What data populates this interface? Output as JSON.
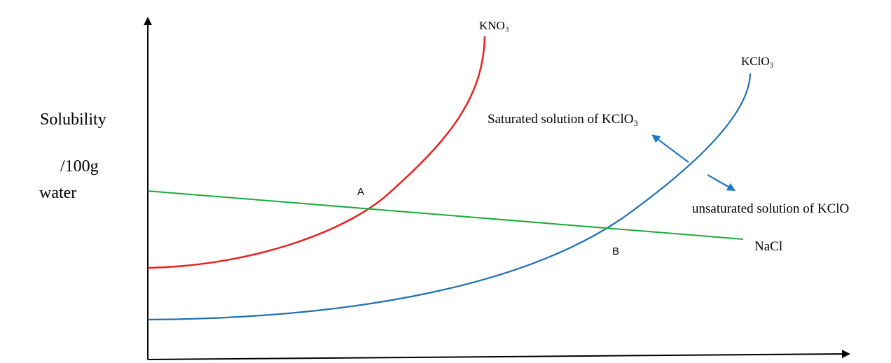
{
  "chart_data": {
    "type": "line",
    "title": "",
    "ylabel_lines": [
      "Solubility",
      "/100g",
      "water"
    ],
    "xlabel": "",
    "axes_ticks": false,
    "grid": false,
    "series": [
      {
        "name": "KNO₃",
        "color": "#e8201c"
      },
      {
        "name": "KClO₃",
        "color": "#1f6fb4"
      },
      {
        "name": "NaCl",
        "color": "#1aaa3a"
      }
    ],
    "points": [
      {
        "label": "A"
      },
      {
        "label": "B"
      }
    ],
    "annotations": {
      "saturated": "Saturated  solution of KClO₃",
      "unsaturated": "unsaturated  solution of KClO",
      "arrow_color": "#1f78c4"
    }
  }
}
